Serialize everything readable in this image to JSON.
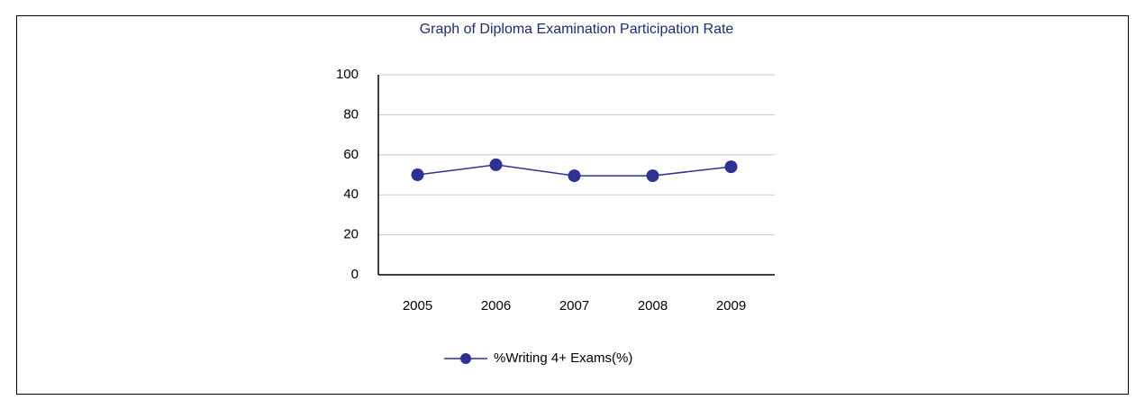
{
  "chart_data": {
    "type": "line",
    "title": "Graph of Diploma Examination Participation Rate",
    "categories": [
      "2005",
      "2006",
      "2007",
      "2008",
      "2009"
    ],
    "series": [
      {
        "name": "%Writing 4+ Exams(%)",
        "color": "#2e3192",
        "values": [
          50,
          55,
          49.5,
          49.5,
          54
        ]
      }
    ],
    "ylim": [
      0,
      100
    ],
    "yticks": [
      0,
      20,
      40,
      60,
      80,
      100
    ],
    "grid": true,
    "legend": "bottom"
  }
}
